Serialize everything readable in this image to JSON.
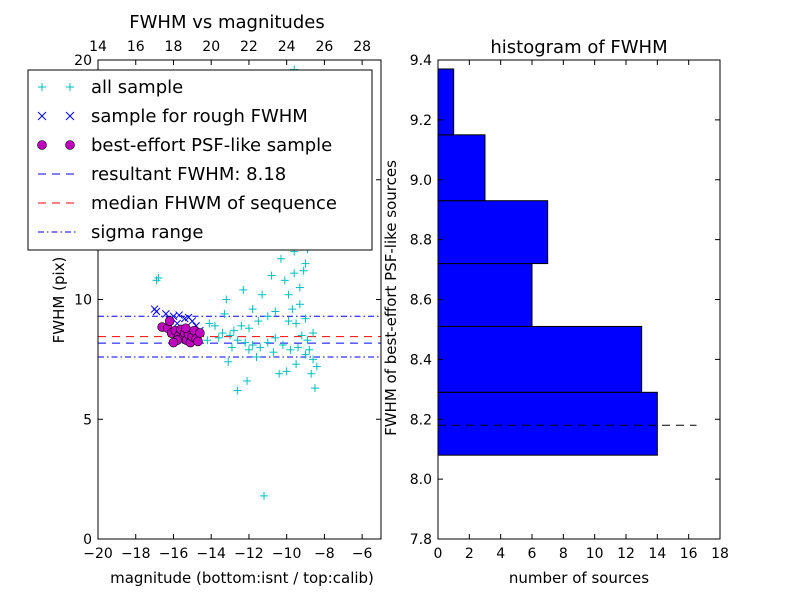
{
  "chart_data": [
    {
      "type": "scatter",
      "title": "FWHM vs magnitudes",
      "xlabel": "magnitude (bottom:isnt / top:calib)",
      "ylabel": "FWHM (pix)",
      "xlim": [
        -20,
        -5
      ],
      "ylim": [
        0,
        20
      ],
      "x_ticks": [
        -20,
        -18,
        -16,
        -14,
        -12,
        -10,
        -8,
        -6
      ],
      "y_ticks": [
        0,
        5,
        10,
        15,
        20
      ],
      "x_tick_labels": [
        "−20",
        "−18",
        "−16",
        "−14",
        "−12",
        "−10",
        "−8",
        "−6"
      ],
      "top_axis": {
        "label_ticks": [
          14,
          16,
          18,
          20,
          22,
          24,
          26,
          28
        ],
        "offset": 34
      },
      "legend": {
        "position": "top-left",
        "entries": [
          {
            "label": "all sample",
            "marker": "+",
            "color": "#00bfbf"
          },
          {
            "label": "sample for rough FWHM",
            "marker": "x",
            "color": "#0000ff"
          },
          {
            "label": "best-effort PSF-like sample",
            "marker": "o",
            "color": "#bf00bf"
          },
          {
            "label": "resultant FWHM: 8.18",
            "line": "dashed",
            "color": "#0000ff"
          },
          {
            "label": "median FHWM of sequence",
            "line": "dashed",
            "color": "#ff0000"
          },
          {
            "label": "sigma range",
            "line": "dashdot",
            "color": "#0000ff"
          }
        ]
      },
      "hlines": [
        {
          "y": 8.18,
          "style": "dashed",
          "color": "#0000ff"
        },
        {
          "y": 8.45,
          "style": "dashed",
          "color": "#ff0000"
        },
        {
          "y": 9.3,
          "style": "dashdot",
          "color": "#0000ff"
        },
        {
          "y": 7.6,
          "style": "dashdot",
          "color": "#0000ff"
        }
      ],
      "series": [
        {
          "name": "all sample",
          "marker": "+",
          "color": "#00bfbf",
          "points": [
            [
              -15.5,
              19.4
            ],
            [
              -11.2,
              18.9
            ],
            [
              -9.6,
              19.6
            ],
            [
              -10.5,
              19.1
            ],
            [
              -16.8,
              10.9
            ],
            [
              -16.9,
              10.8
            ],
            [
              -11.2,
              1.8
            ],
            [
              -10.1,
              13.1
            ],
            [
              -9.4,
              12.9
            ],
            [
              -9.0,
              11.5
            ],
            [
              -9.6,
              12.0
            ],
            [
              -10.8,
              11.0
            ],
            [
              -12.6,
              12.5
            ],
            [
              -13.2,
              10.0
            ],
            [
              -14.1,
              9.0
            ],
            [
              -13.8,
              8.9
            ],
            [
              -13.4,
              8.6
            ],
            [
              -13.0,
              8.5
            ],
            [
              -12.6,
              8.3
            ],
            [
              -12.2,
              8.2
            ],
            [
              -11.8,
              8.1
            ],
            [
              -11.4,
              8.0
            ],
            [
              -11.0,
              8.2
            ],
            [
              -10.6,
              8.4
            ],
            [
              -10.2,
              8.1
            ],
            [
              -9.8,
              7.9
            ],
            [
              -9.4,
              8.0
            ],
            [
              -9.0,
              7.7
            ],
            [
              -8.6,
              7.5
            ],
            [
              -8.4,
              7.2
            ],
            [
              -8.8,
              7.9
            ],
            [
              -9.2,
              8.5
            ],
            [
              -9.5,
              9.0
            ],
            [
              -9.7,
              9.6
            ],
            [
              -9.9,
              10.2
            ],
            [
              -10.1,
              10.8
            ],
            [
              -9.3,
              10.5
            ],
            [
              -9.1,
              11.2
            ],
            [
              -8.9,
              12.1
            ],
            [
              -9.2,
              13.6
            ],
            [
              -9.6,
              14.2
            ],
            [
              -9.8,
              14.9
            ],
            [
              -10.3,
              11.7
            ],
            [
              -10.6,
              9.5
            ],
            [
              -11.0,
              9.3
            ],
            [
              -11.5,
              9.1
            ],
            [
              -12.0,
              8.8
            ],
            [
              -12.4,
              8.9
            ],
            [
              -12.8,
              8.7
            ],
            [
              -13.6,
              8.4
            ],
            [
              -14.2,
              8.3
            ],
            [
              -14.6,
              8.5
            ],
            [
              -13.1,
              7.4
            ],
            [
              -12.1,
              6.6
            ],
            [
              -12.6,
              6.2
            ],
            [
              -8.5,
              6.3
            ],
            [
              -8.7,
              6.9
            ],
            [
              -9.5,
              7.3
            ],
            [
              -10.0,
              7.0
            ],
            [
              -10.4,
              6.9
            ],
            [
              -8.9,
              8.3
            ],
            [
              -8.6,
              8.6
            ],
            [
              -9.0,
              9.2
            ],
            [
              -9.3,
              9.8
            ],
            [
              -9.6,
              11.1
            ],
            [
              -10.0,
              12.3
            ],
            [
              -11.3,
              10.2
            ],
            [
              -11.8,
              9.6
            ],
            [
              -12.3,
              10.4
            ],
            [
              -10.9,
              12.9
            ],
            [
              -9.9,
              9.1
            ],
            [
              -10.7,
              7.8
            ],
            [
              -11.6,
              7.6
            ],
            [
              -12.9,
              8.0
            ],
            [
              -13.3,
              9.4
            ],
            [
              -12.0,
              7.9
            ]
          ]
        },
        {
          "name": "sample for rough FWHM",
          "marker": "x",
          "color": "#0000ff",
          "points": [
            [
              -17.0,
              9.6
            ],
            [
              -16.9,
              9.5
            ],
            [
              -16.4,
              9.4
            ],
            [
              -16.0,
              9.3
            ],
            [
              -15.7,
              9.35
            ],
            [
              -15.4,
              9.2
            ],
            [
              -15.2,
              9.25
            ],
            [
              -15.0,
              9.1
            ],
            [
              -14.8,
              8.9
            ],
            [
              -16.2,
              9.15
            ],
            [
              -15.8,
              9.0
            ],
            [
              -14.6,
              8.7
            ]
          ]
        },
        {
          "name": "best-effort PSF-like sample",
          "marker": "o",
          "color": "#bf00bf",
          "points": [
            [
              -16.6,
              8.85
            ],
            [
              -16.3,
              8.8
            ],
            [
              -16.2,
              9.1
            ],
            [
              -16.1,
              8.6
            ],
            [
              -15.9,
              8.7
            ],
            [
              -15.7,
              8.5
            ],
            [
              -15.6,
              8.75
            ],
            [
              -15.5,
              8.4
            ],
            [
              -15.4,
              8.6
            ],
            [
              -15.3,
              8.3
            ],
            [
              -15.2,
              8.55
            ],
            [
              -15.1,
              8.2
            ],
            [
              -15.0,
              8.45
            ],
            [
              -14.9,
              8.7
            ],
            [
              -14.8,
              8.35
            ],
            [
              -14.6,
              8.6
            ],
            [
              -15.8,
              8.3
            ],
            [
              -16.0,
              8.2
            ],
            [
              -15.35,
              8.8
            ],
            [
              -14.7,
              8.25
            ]
          ]
        }
      ]
    },
    {
      "type": "bar",
      "orientation": "horizontal",
      "title": "histogram of FWHM",
      "xlabel": "number of sources",
      "ylabel": "FWHM of best-effort PSF-like sources",
      "xlim": [
        0,
        18
      ],
      "ylim": [
        7.8,
        9.4
      ],
      "x_ticks": [
        0,
        2,
        4,
        6,
        8,
        10,
        12,
        14,
        16,
        18
      ],
      "y_ticks": [
        7.8,
        8.0,
        8.2,
        8.4,
        8.6,
        8.8,
        9.0,
        9.2,
        9.4
      ],
      "y_tick_labels": [
        "7.8",
        "8.0",
        "8.2",
        "8.4",
        "8.6",
        "8.8",
        "9.0",
        "9.2",
        "9.4"
      ],
      "color": "#0000ff",
      "bins": [
        {
          "start": 8.08,
          "end": 8.29,
          "count": 14
        },
        {
          "start": 8.29,
          "end": 8.51,
          "count": 13
        },
        {
          "start": 8.51,
          "end": 8.72,
          "count": 6
        },
        {
          "start": 8.72,
          "end": 8.93,
          "count": 7
        },
        {
          "start": 8.93,
          "end": 9.15,
          "count": 3
        },
        {
          "start": 9.15,
          "end": 9.37,
          "count": 1
        }
      ],
      "hline": {
        "y": 8.18,
        "style": "dashed",
        "color": "#000000",
        "x_end": 16.5
      }
    }
  ]
}
